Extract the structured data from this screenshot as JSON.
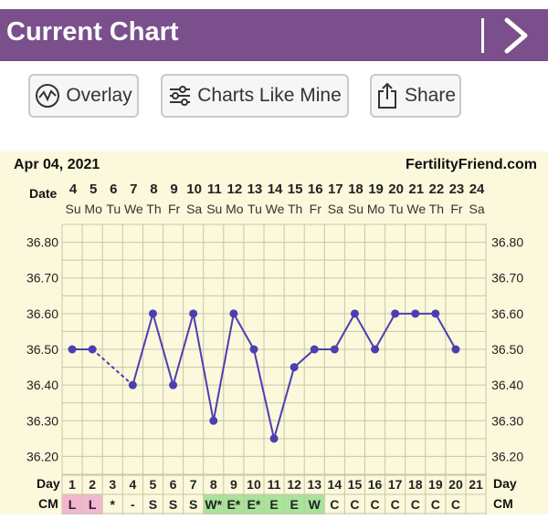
{
  "header": {
    "title": "Current Chart",
    "next_icon": "chevron-right-icon"
  },
  "toolbar": {
    "overlay_label": "Overlay",
    "charts_like_mine_label": "Charts Like Mine",
    "share_label": "Share",
    "overlay_icon": "trend-line-icon",
    "charts_icon": "sliders-icon",
    "share_icon": "share-icon"
  },
  "chart_data": {
    "type": "line",
    "title": "",
    "date_label": "Apr 04, 2021",
    "brand": "FertilityFriend.com",
    "row_labels": {
      "date": "Date",
      "day": "Day",
      "cm": "CM"
    },
    "dates": [
      4,
      5,
      6,
      7,
      8,
      9,
      10,
      11,
      12,
      13,
      14,
      15,
      16,
      17,
      18,
      19,
      20,
      21,
      22,
      23,
      24
    ],
    "weekdays": [
      "Su",
      "Mo",
      "Tu",
      "We",
      "Th",
      "Fr",
      "Sa",
      "Su",
      "Mo",
      "Tu",
      "We",
      "Th",
      "Fr",
      "Sa",
      "Su",
      "Mo",
      "Tu",
      "We",
      "Th",
      "Fr",
      "Sa"
    ],
    "cycle_days": [
      1,
      2,
      3,
      4,
      5,
      6,
      7,
      8,
      9,
      10,
      11,
      12,
      13,
      14,
      15,
      16,
      17,
      18,
      19,
      20,
      21
    ],
    "cm": [
      "L",
      "L",
      "*",
      "-",
      "S",
      "S",
      "S",
      "W*",
      "E*",
      "E*",
      "E",
      "E",
      "W",
      "C",
      "C",
      "C",
      "C",
      "C",
      "C",
      "C",
      ""
    ],
    "cm_colors": {
      "L": "#f3b6d0",
      "E": "#a8e39a",
      "W": "#a8e39a",
      "W*": "#a8e39a",
      "E*": "#a8e39a"
    },
    "ylim": [
      36.15,
      36.85
    ],
    "y_ticks": [
      "36.80",
      "36.70",
      "36.60",
      "36.50",
      "36.40",
      "36.30",
      "36.20"
    ],
    "temps": [
      36.5,
      36.5,
      null,
      36.4,
      36.6,
      36.4,
      36.6,
      36.3,
      36.6,
      36.5,
      36.25,
      36.45,
      36.5,
      36.5,
      36.6,
      36.5,
      36.6,
      36.6,
      36.6,
      36.5,
      null
    ],
    "line_color": "#4b3fb0",
    "grid": true
  }
}
